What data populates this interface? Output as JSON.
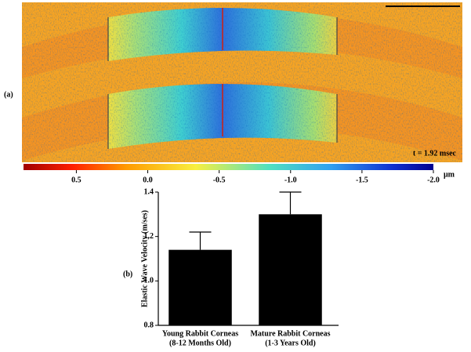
{
  "panel_a": {
    "label": "(a)",
    "annotation": "t = 1.92 msec",
    "colorbar": {
      "lim": [
        0.87,
        -2.0
      ],
      "unit": "μm",
      "ticks": [
        0.5,
        {
          "value": 0,
          "label": "0.0"
        },
        -0.5,
        {
          "value": -1,
          "label": "-1.0"
        },
        -1.5,
        {
          "value": -2,
          "label": "-2.0"
        }
      ]
    }
  },
  "panel_b": {
    "label": "(b)"
  },
  "chart_data": {
    "type": "bar",
    "ylabel": "Elastic Wave Velocity (m/ses)",
    "categories": [
      "Young Rabbit Corneas",
      "Mature Rabbit Corneas"
    ],
    "category_sublabels": [
      "(8-12 Months Old)",
      "(1-3 Years Old)"
    ],
    "values": [
      1.14,
      1.3
    ],
    "errors": [
      0.08,
      0.1
    ],
    "color": "#000000",
    "ylim": [
      0.8,
      1.4
    ],
    "yticks": [
      0.8,
      {
        "value": 1,
        "label": "1.0"
      },
      1.2,
      1.4
    ]
  }
}
